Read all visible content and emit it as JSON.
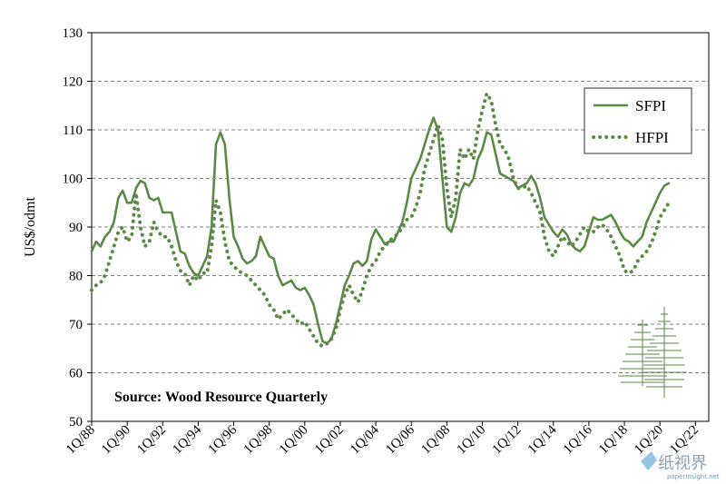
{
  "chart_data": {
    "type": "line",
    "ylabel": "US$/odmt",
    "ylim": [
      50,
      130
    ],
    "yticks": [
      50,
      60,
      70,
      80,
      90,
      100,
      110,
      120,
      130
    ],
    "xlim": [
      1988.0,
      2022.75
    ],
    "xticks": [
      {
        "label": "1Q/88",
        "x": 1988
      },
      {
        "label": "1Q/90",
        "x": 1990
      },
      {
        "label": "1Q/92",
        "x": 1992
      },
      {
        "label": "1Q/94",
        "x": 1994
      },
      {
        "label": "1Q/96",
        "x": 1996
      },
      {
        "label": "1Q/98",
        "x": 1998
      },
      {
        "label": "1Q/00",
        "x": 2000
      },
      {
        "label": "1Q/02",
        "x": 2002
      },
      {
        "label": "1Q/04",
        "x": 2004
      },
      {
        "label": "1Q/06",
        "x": 2006
      },
      {
        "label": "1Q/08",
        "x": 2008
      },
      {
        "label": "1Q/10",
        "x": 2010
      },
      {
        "label": "1Q/12",
        "x": 2012
      },
      {
        "label": "1Q/14",
        "x": 2014
      },
      {
        "label": "1Q/16",
        "x": 2016
      },
      {
        "label": "1Q/18",
        "x": 2018
      },
      {
        "label": "1Q/20",
        "x": 2020
      },
      {
        "label": "1Q/22",
        "x": 2022
      }
    ],
    "grid": true,
    "legend_position": "top-right",
    "annotation": "Source: Wood Resource Quarterly",
    "series": [
      {
        "name": "SFPI",
        "style": "solid",
        "color": "#5a8a46",
        "points": [
          [
            1988.0,
            85
          ],
          [
            1988.25,
            87
          ],
          [
            1988.5,
            86
          ],
          [
            1988.75,
            88
          ],
          [
            1989.0,
            89
          ],
          [
            1989.25,
            91
          ],
          [
            1989.5,
            96
          ],
          [
            1989.75,
            97.5
          ],
          [
            1990.0,
            95
          ],
          [
            1990.25,
            95
          ],
          [
            1990.5,
            98
          ],
          [
            1990.75,
            99.5
          ],
          [
            1991.0,
            99
          ],
          [
            1991.25,
            96
          ],
          [
            1991.5,
            95.5
          ],
          [
            1991.75,
            96
          ],
          [
            1992.0,
            93
          ],
          [
            1992.25,
            93
          ],
          [
            1992.5,
            93
          ],
          [
            1992.75,
            89
          ],
          [
            1993.0,
            85
          ],
          [
            1993.25,
            84.5
          ],
          [
            1993.5,
            82
          ],
          [
            1993.75,
            80.5
          ],
          [
            1994.0,
            80
          ],
          [
            1994.25,
            82
          ],
          [
            1994.5,
            84
          ],
          [
            1994.75,
            90
          ],
          [
            1995.0,
            107
          ],
          [
            1995.25,
            109.5
          ],
          [
            1995.5,
            107
          ],
          [
            1995.75,
            96
          ],
          [
            1996.0,
            88
          ],
          [
            1996.25,
            86
          ],
          [
            1996.5,
            83.5
          ],
          [
            1996.75,
            82.5
          ],
          [
            1997.0,
            83
          ],
          [
            1997.25,
            84
          ],
          [
            1997.5,
            88
          ],
          [
            1997.75,
            86
          ],
          [
            1998.0,
            84
          ],
          [
            1998.25,
            83.5
          ],
          [
            1998.5,
            80
          ],
          [
            1998.75,
            78
          ],
          [
            1999.0,
            78.5
          ],
          [
            1999.25,
            79
          ],
          [
            1999.5,
            77.5
          ],
          [
            1999.75,
            77
          ],
          [
            2000.0,
            77.5
          ],
          [
            2000.25,
            76
          ],
          [
            2000.5,
            74
          ],
          [
            2000.75,
            70
          ],
          [
            2001.0,
            66.5
          ],
          [
            2001.25,
            66
          ],
          [
            2001.5,
            67
          ],
          [
            2001.75,
            70
          ],
          [
            2002.0,
            74
          ],
          [
            2002.25,
            78
          ],
          [
            2002.5,
            80
          ],
          [
            2002.75,
            82.5
          ],
          [
            2003.0,
            83
          ],
          [
            2003.25,
            82
          ],
          [
            2003.5,
            83
          ],
          [
            2003.75,
            87.5
          ],
          [
            2004.0,
            89.5
          ],
          [
            2004.25,
            88
          ],
          [
            2004.5,
            86.5
          ],
          [
            2004.75,
            87
          ],
          [
            2005.0,
            87
          ],
          [
            2005.25,
            89
          ],
          [
            2005.5,
            91
          ],
          [
            2005.75,
            95
          ],
          [
            2006.0,
            100
          ],
          [
            2006.25,
            102
          ],
          [
            2006.5,
            104
          ],
          [
            2006.75,
            107
          ],
          [
            2007.0,
            110
          ],
          [
            2007.25,
            112.5
          ],
          [
            2007.5,
            110
          ],
          [
            2007.75,
            100
          ],
          [
            2008.0,
            90
          ],
          [
            2008.25,
            89
          ],
          [
            2008.5,
            92
          ],
          [
            2008.75,
            97
          ],
          [
            2009.0,
            99
          ],
          [
            2009.25,
            98.5
          ],
          [
            2009.5,
            100
          ],
          [
            2009.75,
            104
          ],
          [
            2010.0,
            106
          ],
          [
            2010.25,
            109.5
          ],
          [
            2010.5,
            109
          ],
          [
            2010.75,
            105
          ],
          [
            2011.0,
            101
          ],
          [
            2011.25,
            100.5
          ],
          [
            2011.5,
            100
          ],
          [
            2011.75,
            99.5
          ],
          [
            2012.0,
            98
          ],
          [
            2012.25,
            98.5
          ],
          [
            2012.5,
            99
          ],
          [
            2012.75,
            100.5
          ],
          [
            2013.0,
            99
          ],
          [
            2013.25,
            96
          ],
          [
            2013.5,
            92
          ],
          [
            2013.75,
            90.5
          ],
          [
            2014.0,
            89
          ],
          [
            2014.25,
            88
          ],
          [
            2014.5,
            89.5
          ],
          [
            2014.75,
            88.5
          ],
          [
            2015.0,
            86.5
          ],
          [
            2015.25,
            85.5
          ],
          [
            2015.5,
            85
          ],
          [
            2015.75,
            86
          ],
          [
            2016.0,
            89
          ],
          [
            2016.25,
            92
          ],
          [
            2016.5,
            91.5
          ],
          [
            2016.75,
            91.5
          ],
          [
            2017.0,
            92
          ],
          [
            2017.25,
            92.5
          ],
          [
            2017.5,
            91
          ],
          [
            2017.75,
            89
          ],
          [
            2018.0,
            87.5
          ],
          [
            2018.25,
            87
          ],
          [
            2018.5,
            86
          ],
          [
            2018.75,
            87
          ],
          [
            2019.0,
            88
          ],
          [
            2019.25,
            91
          ],
          [
            2019.5,
            93
          ],
          [
            2019.75,
            95
          ],
          [
            2020.0,
            97
          ],
          [
            2020.25,
            98.5
          ],
          [
            2020.5,
            99
          ]
        ]
      },
      {
        "name": "HFPI",
        "style": "dotted",
        "color": "#5a8a46",
        "points": [
          [
            1988.0,
            77
          ],
          [
            1988.25,
            78
          ],
          [
            1988.5,
            78.5
          ],
          [
            1988.75,
            80
          ],
          [
            1989.0,
            83
          ],
          [
            1989.25,
            86
          ],
          [
            1989.5,
            89
          ],
          [
            1989.75,
            90
          ],
          [
            1990.0,
            87
          ],
          [
            1990.25,
            88
          ],
          [
            1990.5,
            97
          ],
          [
            1990.75,
            90
          ],
          [
            1991.0,
            86
          ],
          [
            1991.25,
            87
          ],
          [
            1991.5,
            91
          ],
          [
            1991.75,
            89
          ],
          [
            1992.0,
            88
          ],
          [
            1992.25,
            88
          ],
          [
            1992.5,
            86
          ],
          [
            1992.75,
            83
          ],
          [
            1993.0,
            81
          ],
          [
            1993.25,
            80.5
          ],
          [
            1993.5,
            78
          ],
          [
            1993.75,
            80
          ],
          [
            1994.0,
            79
          ],
          [
            1994.25,
            80.5
          ],
          [
            1994.5,
            80.5
          ],
          [
            1994.75,
            86
          ],
          [
            1995.0,
            95.5
          ],
          [
            1995.25,
            93
          ],
          [
            1995.5,
            87
          ],
          [
            1995.75,
            83
          ],
          [
            1996.0,
            82
          ],
          [
            1996.25,
            81
          ],
          [
            1996.5,
            80.5
          ],
          [
            1996.75,
            80
          ],
          [
            1997.0,
            79
          ],
          [
            1997.25,
            78
          ],
          [
            1997.5,
            77
          ],
          [
            1997.75,
            76
          ],
          [
            1998.0,
            74
          ],
          [
            1998.25,
            73
          ],
          [
            1998.5,
            71
          ],
          [
            1998.75,
            72
          ],
          [
            1999.0,
            73
          ],
          [
            1999.25,
            72
          ],
          [
            1999.5,
            71
          ],
          [
            1999.75,
            70
          ],
          [
            2000.0,
            70.5
          ],
          [
            2000.25,
            69
          ],
          [
            2000.5,
            67.5
          ],
          [
            2000.75,
            66
          ],
          [
            2001.0,
            65.5
          ],
          [
            2001.25,
            66
          ],
          [
            2001.5,
            67
          ],
          [
            2001.75,
            69
          ],
          [
            2002.0,
            73
          ],
          [
            2002.25,
            76
          ],
          [
            2002.5,
            78
          ],
          [
            2002.75,
            76
          ],
          [
            2003.0,
            74.5
          ],
          [
            2003.25,
            77
          ],
          [
            2003.5,
            80
          ],
          [
            2003.75,
            82
          ],
          [
            2004.0,
            83
          ],
          [
            2004.25,
            85
          ],
          [
            2004.5,
            86
          ],
          [
            2004.75,
            87
          ],
          [
            2005.0,
            88
          ],
          [
            2005.25,
            88.5
          ],
          [
            2005.5,
            90
          ],
          [
            2005.75,
            91.5
          ],
          [
            2006.0,
            92
          ],
          [
            2006.25,
            94
          ],
          [
            2006.5,
            97
          ],
          [
            2006.75,
            102
          ],
          [
            2007.0,
            105
          ],
          [
            2007.25,
            108
          ],
          [
            2007.5,
            111
          ],
          [
            2007.75,
            108
          ],
          [
            2008.0,
            98
          ],
          [
            2008.25,
            92
          ],
          [
            2008.5,
            96
          ],
          [
            2008.75,
            106
          ],
          [
            2009.0,
            104
          ],
          [
            2009.25,
            106
          ],
          [
            2009.5,
            104
          ],
          [
            2009.75,
            110
          ],
          [
            2010.0,
            114
          ],
          [
            2010.25,
            117.5
          ],
          [
            2010.5,
            116
          ],
          [
            2010.75,
            111
          ],
          [
            2011.0,
            107
          ],
          [
            2011.25,
            106
          ],
          [
            2011.5,
            104
          ],
          [
            2011.75,
            100
          ],
          [
            2012.0,
            98
          ],
          [
            2012.25,
            98
          ],
          [
            2012.5,
            98.5
          ],
          [
            2012.75,
            97
          ],
          [
            2013.0,
            95
          ],
          [
            2013.25,
            93
          ],
          [
            2013.5,
            88
          ],
          [
            2013.75,
            85
          ],
          [
            2014.0,
            84
          ],
          [
            2014.25,
            86
          ],
          [
            2014.5,
            88
          ],
          [
            2014.75,
            87
          ],
          [
            2015.0,
            86
          ],
          [
            2015.25,
            87
          ],
          [
            2015.5,
            88.5
          ],
          [
            2015.75,
            90
          ],
          [
            2016.0,
            89
          ],
          [
            2016.25,
            89
          ],
          [
            2016.5,
            90
          ],
          [
            2016.75,
            90.5
          ],
          [
            2017.0,
            89.5
          ],
          [
            2017.25,
            88
          ],
          [
            2017.5,
            86
          ],
          [
            2017.75,
            84
          ],
          [
            2018.0,
            81
          ],
          [
            2018.25,
            80.5
          ],
          [
            2018.5,
            81
          ],
          [
            2018.75,
            83
          ],
          [
            2019.0,
            84
          ],
          [
            2019.25,
            85
          ],
          [
            2019.5,
            86.5
          ],
          [
            2019.75,
            89
          ],
          [
            2020.0,
            92
          ],
          [
            2020.25,
            93.5
          ],
          [
            2020.5,
            95
          ]
        ]
      }
    ]
  },
  "watermark": {
    "brand_glyphs": "纸视界",
    "url": "paperinsight.net",
    "icon": "tree-logo-icon"
  }
}
